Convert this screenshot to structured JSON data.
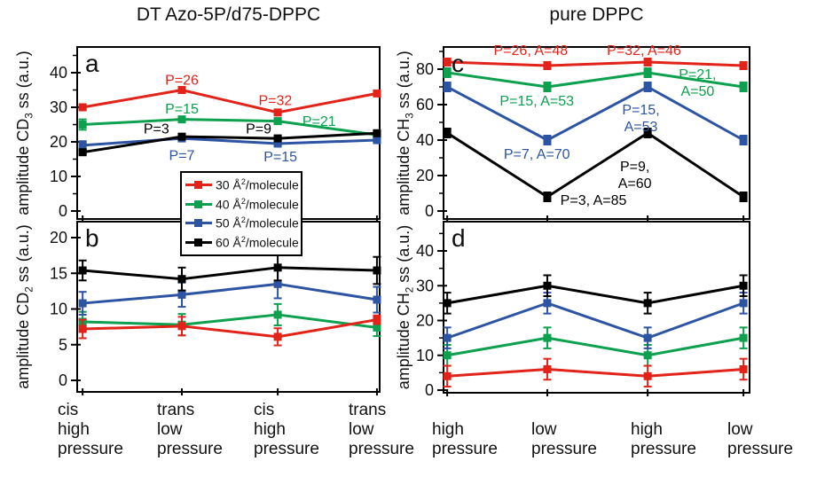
{
  "titles": {
    "left": "DT Azo-5P/d75-DPPC",
    "right": "pure DPPC"
  },
  "colors": {
    "red": "#e2231a",
    "green": "#0da04e",
    "blue": "#2d54a3",
    "black": "#000000",
    "background": "#ffffff"
  },
  "legend": {
    "items": [
      {
        "pre": "30 Å",
        "sup": "2",
        "post": "/molecule",
        "color": "#e2231a"
      },
      {
        "pre": "40 Å",
        "sup": "2",
        "post": "/molecule",
        "color": "#0da04e"
      },
      {
        "pre": "50 Å",
        "sup": "2",
        "post": "/molecule",
        "color": "#2d54a3"
      },
      {
        "pre": "60 Å",
        "sup": "2",
        "post": "/molecule",
        "color": "#000000"
      }
    ]
  },
  "xaxis": {
    "left": [
      {
        "line1": "cis",
        "line2": "high",
        "line3": "pressure"
      },
      {
        "line1": "trans",
        "line2": "low",
        "line3": "pressure"
      },
      {
        "line1": "cis",
        "line2": "high",
        "line3": "pressure"
      },
      {
        "line1": "trans",
        "line2": "low",
        "line3": "pressure"
      }
    ],
    "right": [
      {
        "line1": "high",
        "line2": "pressure"
      },
      {
        "line1": "low",
        "line2": "pressure"
      },
      {
        "line1": "high",
        "line2": "pressure"
      },
      {
        "line1": "low",
        "line2": "pressure"
      }
    ]
  },
  "chart_data": [
    {
      "id": "a",
      "letter": "a",
      "type": "line",
      "title": "DT Azo-5P/d75-DPPC",
      "ylabel": {
        "pre": "amplitude CD",
        "sub": "3",
        "post": " ss (a.u.)"
      },
      "categories": [
        "cis high pressure",
        "trans low pressure",
        "cis high pressure",
        "trans low pressure"
      ],
      "yticks": [
        0,
        10,
        20,
        30,
        40
      ],
      "minor_yticks": [
        5,
        15,
        25,
        35,
        45
      ],
      "ylim": [
        -2.3,
        47.4
      ],
      "series": [
        {
          "name": "30 Å2/molecule",
          "color": "#e2231a",
          "values": [
            30,
            35,
            28.5,
            34
          ],
          "errors": [
            0.5,
            0.5,
            0.5,
            0.5
          ]
        },
        {
          "name": "40 Å2/molecule",
          "color": "#0da04e",
          "values": [
            25,
            26.5,
            26,
            22
          ],
          "errors": [
            1.5,
            0.7,
            0.7,
            0.7
          ]
        },
        {
          "name": "50 Å2/molecule",
          "color": "#2d54a3",
          "values": [
            19,
            21,
            19.5,
            20.5
          ],
          "errors": [
            1.2,
            0.5,
            0.5,
            0.5
          ]
        },
        {
          "name": "60 Å2/molecule",
          "color": "#000000",
          "values": [
            17,
            21.5,
            21,
            22.5
          ],
          "errors": [
            0.5,
            0.5,
            0.5,
            0.5
          ]
        }
      ],
      "annotations": [
        {
          "text": "P=26",
          "color": "#e2231a",
          "xf": 0.346,
          "y": 36.5
        },
        {
          "text": "P=32",
          "color": "#e2231a",
          "xf": 0.655,
          "y": 30.6
        },
        {
          "text": "P=15",
          "color": "#0da04e",
          "xf": 0.346,
          "y": 28.2
        },
        {
          "text": "P=21",
          "color": "#0da04e",
          "xf": 0.8,
          "y": 24.6
        },
        {
          "text": "P=3",
          "color": "#000000",
          "xf": 0.262,
          "y": 22.5
        },
        {
          "text": "P=9",
          "color": "#000000",
          "xf": 0.6,
          "y": 22.5
        },
        {
          "text": "P=7",
          "color": "#2d54a3",
          "xf": 0.346,
          "y": 14.7
        },
        {
          "text": "P=15",
          "color": "#2d54a3",
          "xf": 0.672,
          "y": 14.4
        }
      ]
    },
    {
      "id": "b",
      "letter": "b",
      "type": "line",
      "title": "",
      "ylabel": {
        "pre": "amplitude CD",
        "sub": "2",
        "post": " ss (a.u.)"
      },
      "categories": [
        "cis high pressure",
        "trans low pressure",
        "cis high pressure",
        "trans low pressure"
      ],
      "yticks": [
        0,
        5,
        10,
        15,
        20
      ],
      "minor_yticks": [],
      "ylim": [
        -1.6,
        22.2
      ],
      "series": [
        {
          "name": "30 Å2/molecule",
          "color": "#e2231a",
          "values": [
            7.2,
            7.6,
            6.1,
            8.5
          ],
          "errors": [
            1.3,
            1.3,
            1.2,
            0.6
          ]
        },
        {
          "name": "40 Å2/molecule",
          "color": "#0da04e",
          "values": [
            8.2,
            7.8,
            9.2,
            7.4
          ],
          "errors": [
            1.4,
            1.5,
            1.5,
            1.2
          ]
        },
        {
          "name": "50 Å2/molecule",
          "color": "#2d54a3",
          "values": [
            10.8,
            12,
            13.5,
            11.3
          ],
          "errors": [
            1.6,
            1.7,
            2.0,
            1.8
          ]
        },
        {
          "name": "60 Å2/molecule",
          "color": "#000000",
          "values": [
            15.4,
            14.2,
            15.8,
            15.4
          ],
          "errors": [
            1.4,
            1.6,
            1.8,
            1.9
          ]
        }
      ],
      "annotations": []
    },
    {
      "id": "c",
      "letter": "c",
      "type": "line",
      "title": "pure DPPC",
      "ylabel": {
        "pre": "amplitude CH",
        "sub": "3",
        "post": " ss (a.u.)"
      },
      "categories": [
        "high pressure",
        "low pressure",
        "high pressure",
        "low pressure"
      ],
      "yticks": [
        0,
        20,
        40,
        60,
        80
      ],
      "minor_yticks": [
        10,
        30,
        50,
        70,
        90
      ],
      "ylim": [
        -4.5,
        92.5
      ],
      "series": [
        {
          "name": "30 Å2/molecule",
          "color": "#e2231a",
          "values": [
            84,
            82,
            84,
            82
          ],
          "errors": [
            2,
            2,
            2,
            2
          ]
        },
        {
          "name": "40 Å2/molecule",
          "color": "#0da04e",
          "values": [
            78,
            70,
            78,
            70
          ],
          "errors": [
            2.5,
            2.5,
            2.5,
            2.5
          ]
        },
        {
          "name": "50 Å2/molecule",
          "color": "#2d54a3",
          "values": [
            70,
            40,
            70,
            40
          ],
          "errors": [
            2.5,
            2.5,
            2.5,
            2.5
          ]
        },
        {
          "name": "60 Å2/molecule",
          "color": "#000000",
          "values": [
            44,
            8,
            44,
            8
          ],
          "errors": [
            2.5,
            2.5,
            2.5,
            2.5
          ]
        }
      ],
      "annotations": [
        {
          "text": "P=26, A=48",
          "color": "#e2231a",
          "xf": 0.285,
          "y": 88
        },
        {
          "text": "P=32, A=46",
          "color": "#e2231a",
          "xf": 0.655,
          "y": 88
        },
        {
          "text": "P=15, A=53",
          "color": "#0da04e",
          "xf": 0.305,
          "y": 59.5
        },
        {
          "text": "P=21,\nA=50",
          "color": "#0da04e",
          "xf": 0.83,
          "y": 74.5
        },
        {
          "text": "P=7, A=70",
          "color": "#2d54a3",
          "xf": 0.305,
          "y": 29.5
        },
        {
          "text": "P=15,\nA=53",
          "color": "#2d54a3",
          "xf": 0.645,
          "y": 54.5
        },
        {
          "text": "P=3, A=85",
          "color": "#000000",
          "xf": 0.49,
          "y": 3.5
        },
        {
          "text": "P=9,\nA=60",
          "color": "#000000",
          "xf": 0.625,
          "y": 22.5
        }
      ]
    },
    {
      "id": "d",
      "letter": "d",
      "type": "line",
      "title": "",
      "ylabel": {
        "pre": "amplitude CH",
        "sub": "2",
        "post": " ss (a.u.)"
      },
      "categories": [
        "high pressure",
        "low pressure",
        "high pressure",
        "low pressure"
      ],
      "yticks": [
        0,
        10,
        20,
        30,
        40
      ],
      "minor_yticks": [
        5,
        15,
        25,
        35,
        45
      ],
      "ylim": [
        -0.8,
        48.4
      ],
      "series": [
        {
          "name": "30 Å2/molecule",
          "color": "#e2231a",
          "values": [
            4,
            6,
            4,
            6
          ],
          "errors": [
            3,
            3,
            3,
            3
          ]
        },
        {
          "name": "40 Å2/molecule",
          "color": "#0da04e",
          "values": [
            10,
            15,
            10,
            15
          ],
          "errors": [
            3,
            3,
            3,
            3
          ]
        },
        {
          "name": "50 Å2/molecule",
          "color": "#2d54a3",
          "values": [
            15,
            25,
            15,
            25
          ],
          "errors": [
            3,
            3,
            3,
            3
          ]
        },
        {
          "name": "60 Å2/molecule",
          "color": "#000000",
          "values": [
            25,
            30,
            25,
            30
          ],
          "errors": [
            3,
            3,
            3,
            3
          ]
        }
      ],
      "annotations": []
    }
  ]
}
